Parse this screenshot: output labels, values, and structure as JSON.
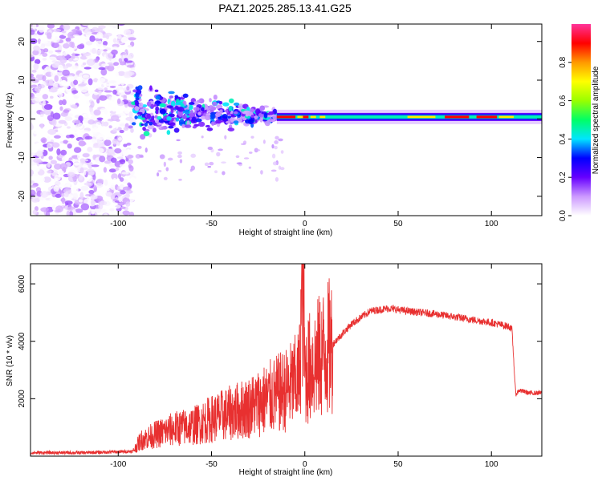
{
  "figure_title": "PAZ1.2025.285.13.41.G25",
  "chart_data": [
    {
      "type": "heatmap",
      "title": "PAZ1.2025.285.13.41.G25",
      "xlabel": "Height of straight line (km)",
      "ylabel": "Frequency (Hz)",
      "xlim": [
        -147,
        127
      ],
      "ylim": [
        -25,
        24.5
      ],
      "xticks": [
        -100,
        -50,
        0,
        50,
        100
      ],
      "yticks": [
        -20,
        -10,
        0,
        10,
        20
      ],
      "colorbar": {
        "label": "Normalized spectral amplitude",
        "range": [
          0.0,
          1.0
        ],
        "ticks": [
          "0.0",
          "0.2",
          "0.4",
          "0.6",
          "0.8"
        ],
        "tick_values": [
          0.0,
          0.2,
          0.4,
          0.6,
          0.8
        ],
        "colors": [
          "#ffffff",
          "#cc99ff",
          "#6600ff",
          "#0000ff",
          "#00e5ff",
          "#00ff66",
          "#99ff00",
          "#ffff00",
          "#ff9900",
          "#ff0000",
          "#ff3399"
        ]
      },
      "features": [
        {
          "name": "diffuse noise",
          "x_range": [
            -147,
            -92
          ],
          "freq_range": [
            -25,
            24.5
          ],
          "amplitude": 0.1
        },
        {
          "name": "multipath scatter",
          "x_range": [
            -92,
            -15
          ],
          "freq_range": [
            -6,
            10
          ],
          "amplitude": 0.3
        },
        {
          "name": "direct signal line",
          "x_range": [
            -15,
            127
          ],
          "freq_center": 0.5,
          "amplitude": 0.9
        }
      ]
    },
    {
      "type": "line",
      "xlabel": "Height of straight line (km)",
      "ylabel": "SNR (10 * v/v)",
      "xlim": [
        -147,
        127
      ],
      "ylim": [
        0,
        6700
      ],
      "xticks": [
        -100,
        -50,
        0,
        50,
        100
      ],
      "yticks": [
        2000,
        4000,
        6000
      ],
      "series": [
        {
          "name": "SNR",
          "color": "#e83030",
          "x": [
            -147,
            -120,
            -100,
            -92,
            -88,
            -80,
            -70,
            -60,
            -50,
            -40,
            -30,
            -20,
            -10,
            -3,
            -1,
            0,
            3,
            8,
            15,
            25,
            35,
            45,
            55,
            70,
            85,
            100,
            110,
            111,
            113,
            115,
            120,
            127
          ],
          "y": [
            120,
            120,
            150,
            170,
            550,
            750,
            950,
            1050,
            1300,
            1500,
            1700,
            2000,
            2300,
            2700,
            6500,
            2900,
            3100,
            3450,
            3900,
            4600,
            5050,
            5150,
            5050,
            4950,
            4800,
            4650,
            4500,
            4400,
            2150,
            2300,
            2200,
            2200
          ]
        }
      ]
    }
  ]
}
